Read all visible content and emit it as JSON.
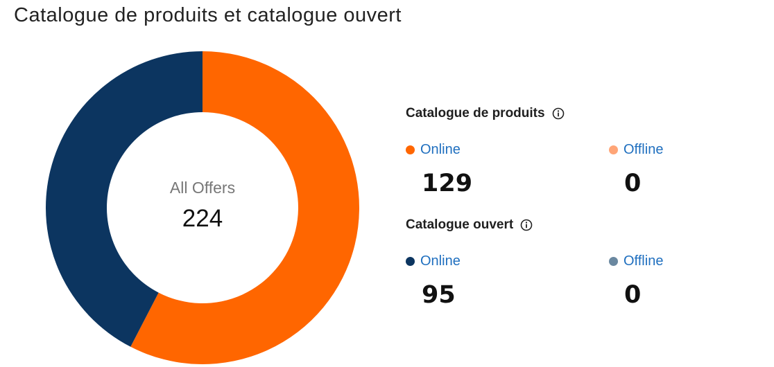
{
  "title": "Catalogue de produits et catalogue ouvert",
  "donut": {
    "center_label": "All Offers",
    "center_value": "224"
  },
  "chart_data": {
    "type": "pie",
    "categories": [
      "Catalogue de produits",
      "Catalogue ouvert"
    ],
    "values": [
      129,
      95
    ],
    "colors": [
      "#ff6600",
      "#0c3560"
    ],
    "total": 224
  },
  "sections": [
    {
      "title": "Catalogue de produits",
      "info_icon": "info-icon",
      "online": {
        "label": "Online",
        "value": "129",
        "color": "#ff6600"
      },
      "offline": {
        "label": "Offline",
        "value": "0",
        "color": "#ffa577"
      }
    },
    {
      "title": "Catalogue ouvert",
      "info_icon": "info-icon",
      "online": {
        "label": "Online",
        "value": "95",
        "color": "#0c3560"
      },
      "offline": {
        "label": "Offline",
        "value": "0",
        "color": "#6a88a0"
      }
    }
  ]
}
